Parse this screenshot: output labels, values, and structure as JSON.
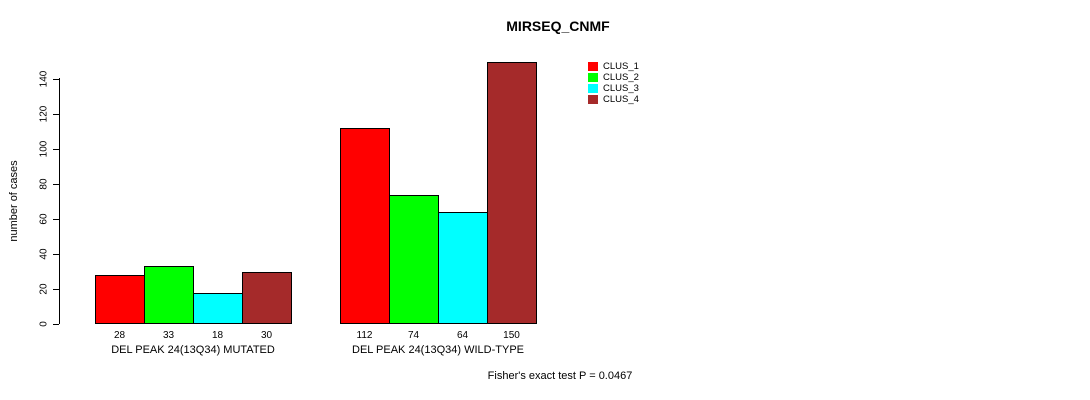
{
  "title": "MIRSEQ_CNMF",
  "footer_note": "Fisher's exact test P = 0.0467",
  "chart_data": {
    "type": "bar",
    "title": "MIRSEQ_CNMF",
    "xlabel": "",
    "ylabel": "number of cases",
    "ylim": [
      0,
      150
    ],
    "yticks": [
      0,
      20,
      40,
      60,
      80,
      100,
      120,
      140
    ],
    "grid": false,
    "legend_position": "top-right",
    "series": [
      {
        "name": "CLUS_1",
        "color": "#ff0000"
      },
      {
        "name": "CLUS_2",
        "color": "#00ff00"
      },
      {
        "name": "CLUS_3",
        "color": "#00ffff"
      },
      {
        "name": "CLUS_4",
        "color": "#a52a2a"
      }
    ],
    "groups": [
      {
        "label": "DEL PEAK 24(13Q34) MUTATED",
        "values": [
          28,
          33,
          18,
          30
        ],
        "value_labels": [
          "28",
          "33",
          "18",
          "30"
        ]
      },
      {
        "label": "DEL PEAK 24(13Q34) WILD-TYPE",
        "values": [
          112,
          74,
          64,
          150
        ],
        "value_labels": [
          "112",
          "74",
          "64",
          "150"
        ]
      }
    ],
    "annotation": "Fisher's exact test P = 0.0467"
  }
}
